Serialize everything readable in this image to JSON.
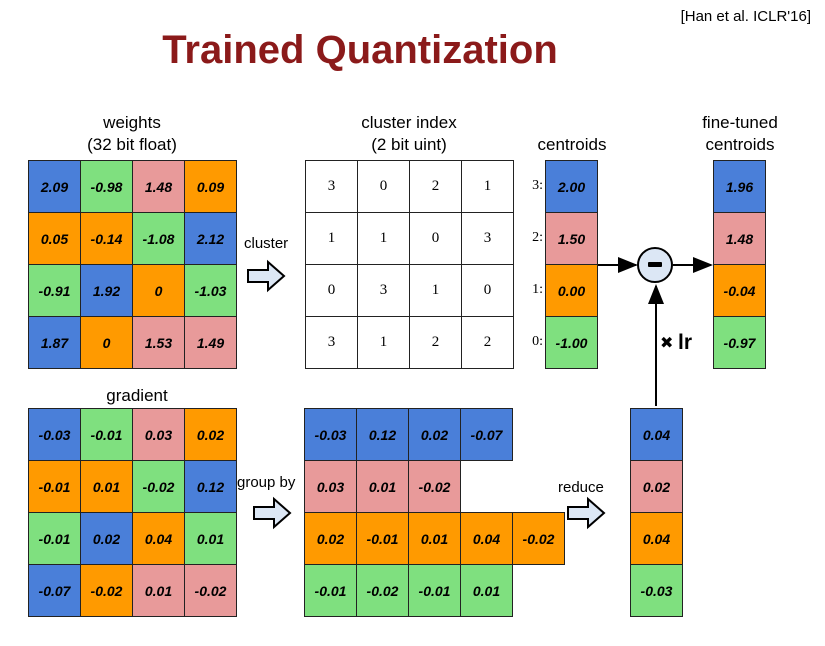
{
  "citation": "[Han et al. ICLR'16]",
  "title": "Trained Quantization",
  "colors": {
    "blue": "#4a7fd9",
    "green": "#7fe07f",
    "pink": "#e89a9a",
    "orange": "#ff9a00",
    "title": "#8b1a1a"
  },
  "labels": {
    "weights_line1": "weights",
    "weights_line2": "(32 bit float)",
    "cluster_index_line1": "cluster index",
    "cluster_index_line2": "(2 bit uint)",
    "centroids": "centroids",
    "finetuned_line1": "fine-tuned",
    "finetuned_line2": "centroids",
    "gradient": "gradient",
    "cluster": "cluster",
    "group_by": "group by",
    "reduce": "reduce",
    "lr": "lr",
    "multiply_symbol": "✖",
    "minus_symbol": "−"
  },
  "weights": [
    [
      "2.09",
      "-0.98",
      "1.48",
      "0.09"
    ],
    [
      "0.05",
      "-0.14",
      "-1.08",
      "2.12"
    ],
    [
      "-0.91",
      "1.92",
      "0",
      "-1.03"
    ],
    [
      "1.87",
      "0",
      "1.53",
      "1.49"
    ]
  ],
  "weights_colors": [
    [
      "blue",
      "green",
      "pink",
      "orange"
    ],
    [
      "orange",
      "orange",
      "green",
      "blue"
    ],
    [
      "green",
      "blue",
      "orange",
      "green"
    ],
    [
      "blue",
      "orange",
      "pink",
      "pink"
    ]
  ],
  "cluster_index": [
    [
      "3",
      "0",
      "2",
      "1"
    ],
    [
      "1",
      "1",
      "0",
      "3"
    ],
    [
      "0",
      "3",
      "1",
      "0"
    ],
    [
      "3",
      "1",
      "2",
      "2"
    ]
  ],
  "centroids": [
    {
      "label": "3:",
      "value": "2.00",
      "color": "blue"
    },
    {
      "label": "2:",
      "value": "1.50",
      "color": "pink"
    },
    {
      "label": "1:",
      "value": "0.00",
      "color": "orange"
    },
    {
      "label": "0:",
      "value": "-1.00",
      "color": "green"
    }
  ],
  "finetuned": [
    {
      "value": "1.96",
      "color": "blue"
    },
    {
      "value": "1.48",
      "color": "pink"
    },
    {
      "value": "-0.04",
      "color": "orange"
    },
    {
      "value": "-0.97",
      "color": "green"
    }
  ],
  "gradient": [
    [
      "-0.03",
      "-0.01",
      "0.03",
      "0.02"
    ],
    [
      "-0.01",
      "0.01",
      "-0.02",
      "0.12"
    ],
    [
      "-0.01",
      "0.02",
      "0.04",
      "0.01"
    ],
    [
      "-0.07",
      "-0.02",
      "0.01",
      "-0.02"
    ]
  ],
  "gradient_colors": [
    [
      "blue",
      "green",
      "pink",
      "orange"
    ],
    [
      "orange",
      "orange",
      "green",
      "blue"
    ],
    [
      "green",
      "blue",
      "orange",
      "green"
    ],
    [
      "blue",
      "orange",
      "pink",
      "pink"
    ]
  ],
  "grouped": [
    {
      "color": "blue",
      "values": [
        "-0.03",
        "0.12",
        "0.02",
        "-0.07"
      ]
    },
    {
      "color": "pink",
      "values": [
        "0.03",
        "0.01",
        "-0.02"
      ]
    },
    {
      "color": "orange",
      "values": [
        "0.02",
        "-0.01",
        "0.01",
        "0.04",
        "-0.02"
      ]
    },
    {
      "color": "green",
      "values": [
        "-0.01",
        "-0.02",
        "-0.01",
        "0.01"
      ]
    }
  ],
  "reduced": [
    {
      "value": "0.04",
      "color": "blue"
    },
    {
      "value": "0.02",
      "color": "pink"
    },
    {
      "value": "0.04",
      "color": "orange"
    },
    {
      "value": "-0.03",
      "color": "green"
    }
  ]
}
